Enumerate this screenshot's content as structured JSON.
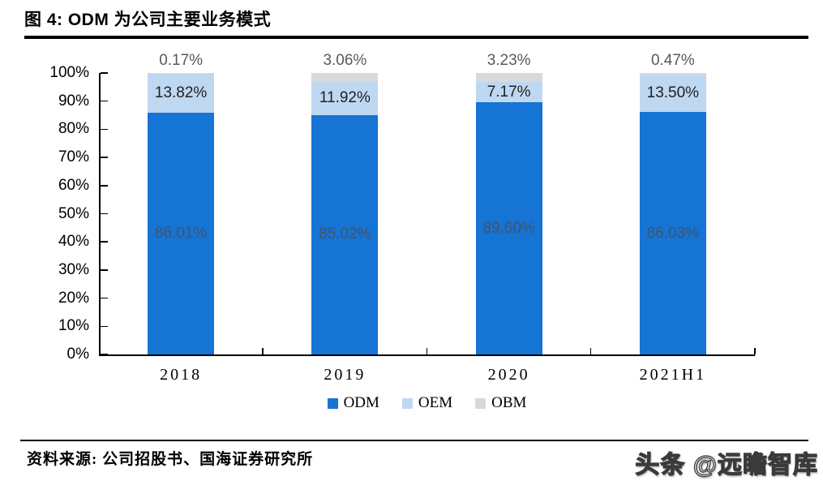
{
  "header": {
    "title": "图 4:  ODM 为公司主要业务模式"
  },
  "footer": {
    "source_label": "资料来源:",
    "source_text": "公司招股书、国海证券研究所",
    "watermark": "头条 @远瞻智库"
  },
  "colors": {
    "odm_blue": "#1574D4",
    "oem_light_blue": "#BFD8F2",
    "obm_gray": "#D9D9D9",
    "axis": "#000000"
  },
  "chart_data": {
    "type": "bar",
    "stacked": true,
    "stack_mode": "percent",
    "title": "图 4:  ODM 为公司主要业务模式",
    "categories": [
      "2018",
      "2019",
      "2020",
      "2021H1"
    ],
    "series": [
      {
        "name": "ODM",
        "color": "#1574D4",
        "label_color": "#44546A",
        "label_position": "inside-center",
        "values": [
          86.01,
          85.02,
          89.6,
          86.03
        ],
        "labels": [
          "86.01%",
          "85.02%",
          "89.60%",
          "86.03%"
        ]
      },
      {
        "name": "OEM",
        "color": "#BFD8F2",
        "label_color": "#1F1F1F",
        "label_position": "inside-center",
        "values": [
          13.82,
          11.92,
          7.17,
          13.5
        ],
        "labels": [
          "13.82%",
          "11.92%",
          "7.17%",
          "13.50%"
        ]
      },
      {
        "name": "OBM",
        "color": "#D9D9D9",
        "label_color": "#595959",
        "label_position": "above-bar",
        "values": [
          0.17,
          3.06,
          3.23,
          0.47
        ],
        "labels": [
          "0.17%",
          "3.06%",
          "3.23%",
          "0.47%"
        ]
      }
    ],
    "xlabel": "",
    "ylabel": "",
    "ylim": [
      0,
      100
    ],
    "yticks": [
      100,
      90,
      80,
      70,
      60,
      50,
      40,
      30,
      20,
      10,
      0
    ],
    "ytick_labels": [
      "100%",
      "90%",
      "80%",
      "70%",
      "60%",
      "50%",
      "40%",
      "30%",
      "20%",
      "10%",
      "0%"
    ],
    "grid": false,
    "legend": {
      "position": "bottom",
      "entries": [
        "ODM",
        "OEM",
        "OBM"
      ]
    }
  }
}
